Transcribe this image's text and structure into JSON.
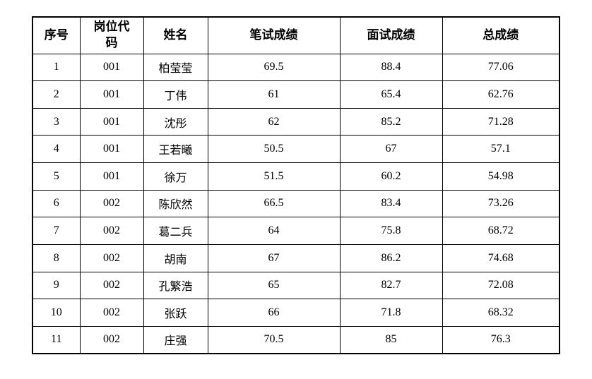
{
  "table": {
    "headers": [
      "序号",
      "岗位代码",
      "姓名",
      "笔试成绩",
      "面试成绩",
      "总成绩"
    ],
    "rows": [
      [
        "1",
        "001",
        "柏莹莹",
        "69.5",
        "88.4",
        "77.06"
      ],
      [
        "2",
        "001",
        "丁伟",
        "61",
        "65.4",
        "62.76"
      ],
      [
        "3",
        "001",
        "沈彤",
        "62",
        "85.2",
        "71.28"
      ],
      [
        "4",
        "001",
        "王若曦",
        "50.5",
        "67",
        "57.1"
      ],
      [
        "5",
        "001",
        "徐万",
        "51.5",
        "60.2",
        "54.98"
      ],
      [
        "6",
        "002",
        "陈欣然",
        "66.5",
        "83.4",
        "73.26"
      ],
      [
        "7",
        "002",
        "葛二兵",
        "64",
        "75.8",
        "68.72"
      ],
      [
        "8",
        "002",
        "胡南",
        "67",
        "86.2",
        "74.68"
      ],
      [
        "9",
        "002",
        "孔繁浩",
        "65",
        "82.7",
        "72.08"
      ],
      [
        "10",
        "002",
        "张跃",
        "66",
        "71.8",
        "68.32"
      ],
      [
        "11",
        "002",
        "庄强",
        "70.5",
        "85",
        "76.3"
      ]
    ],
    "colors": {
      "border": "#000000",
      "text": "#000000",
      "background": "#ffffff"
    }
  }
}
